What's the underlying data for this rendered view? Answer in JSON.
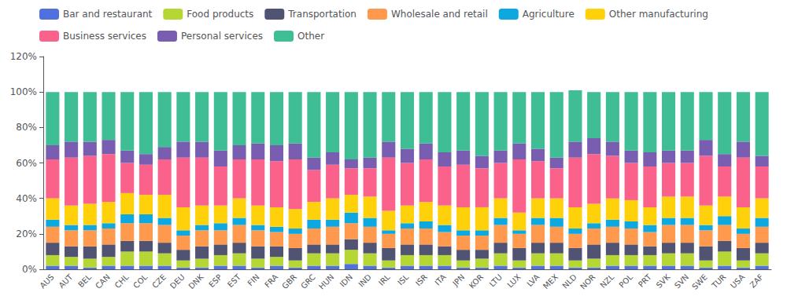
{
  "chart_data": {
    "type": "bar",
    "stacked": true,
    "categories": [
      "AUS",
      "AUT",
      "BEL",
      "CAN",
      "CHL",
      "COL",
      "CZE",
      "DEU",
      "DNK",
      "ESP",
      "EST",
      "FIN",
      "FRA",
      "GBR",
      "GRC",
      "HUN",
      "IDN",
      "IND",
      "IRL",
      "ISL",
      "ISR",
      "ITA",
      "JPN",
      "KOR",
      "LTU",
      "LUX",
      "LVA",
      "MEX",
      "NLD",
      "NOR",
      "NZL",
      "POL",
      "PRT",
      "SVK",
      "SVN",
      "SWE",
      "TUR",
      "USA",
      "ZAF"
    ],
    "series": [
      {
        "name": "Bar and restaurant",
        "values": [
          0.02,
          0.02,
          0.01,
          0.02,
          0.02,
          0.02,
          0.02,
          0.01,
          0.01,
          0.02,
          0.02,
          0.01,
          0.02,
          0.01,
          0.02,
          0.02,
          0.03,
          0.02,
          0.01,
          0.02,
          0.02,
          0.02,
          0.01,
          0.01,
          0.02,
          0.01,
          0.02,
          0.02,
          0.01,
          0.01,
          0.02,
          0.02,
          0.02,
          0.02,
          0.02,
          0.01,
          0.02,
          0.01,
          0.02
        ]
      },
      {
        "name": "Food products",
        "values": [
          0.06,
          0.05,
          0.05,
          0.05,
          0.08,
          0.08,
          0.07,
          0.04,
          0.05,
          0.06,
          0.07,
          0.05,
          0.05,
          0.04,
          0.07,
          0.07,
          0.08,
          0.07,
          0.04,
          0.06,
          0.06,
          0.06,
          0.04,
          0.05,
          0.07,
          0.04,
          0.07,
          0.07,
          0.04,
          0.05,
          0.06,
          0.06,
          0.06,
          0.07,
          0.07,
          0.04,
          0.08,
          0.04,
          0.07
        ]
      },
      {
        "name": "Transportation",
        "values": [
          0.07,
          0.06,
          0.07,
          0.07,
          0.06,
          0.06,
          0.06,
          0.06,
          0.07,
          0.06,
          0.06,
          0.07,
          0.06,
          0.07,
          0.05,
          0.05,
          0.06,
          0.06,
          0.07,
          0.06,
          0.06,
          0.05,
          0.06,
          0.05,
          0.06,
          0.07,
          0.06,
          0.06,
          0.07,
          0.08,
          0.07,
          0.06,
          0.05,
          0.06,
          0.06,
          0.08,
          0.06,
          0.07,
          0.06
        ]
      },
      {
        "name": "Wholesale and retail",
        "values": [
          0.09,
          0.09,
          0.09,
          0.09,
          0.1,
          0.1,
          0.1,
          0.08,
          0.09,
          0.08,
          0.1,
          0.09,
          0.08,
          0.08,
          0.09,
          0.1,
          0.09,
          0.09,
          0.08,
          0.09,
          0.09,
          0.08,
          0.08,
          0.08,
          0.1,
          0.08,
          0.1,
          0.09,
          0.08,
          0.09,
          0.09,
          0.09,
          0.08,
          0.1,
          0.1,
          0.09,
          0.09,
          0.08,
          0.09
        ]
      },
      {
        "name": "Agriculture",
        "values": [
          0.04,
          0.03,
          0.03,
          0.03,
          0.05,
          0.05,
          0.04,
          0.03,
          0.03,
          0.04,
          0.04,
          0.03,
          0.03,
          0.03,
          0.05,
          0.04,
          0.06,
          0.05,
          0.02,
          0.03,
          0.04,
          0.04,
          0.03,
          0.03,
          0.04,
          0.02,
          0.04,
          0.05,
          0.03,
          0.03,
          0.04,
          0.04,
          0.04,
          0.04,
          0.04,
          0.03,
          0.05,
          0.03,
          0.05
        ]
      },
      {
        "name": "Other manufacturing",
        "values": [
          0.12,
          0.11,
          0.12,
          0.12,
          0.12,
          0.11,
          0.13,
          0.13,
          0.11,
          0.1,
          0.11,
          0.11,
          0.11,
          0.11,
          0.1,
          0.12,
          0.1,
          0.12,
          0.11,
          0.1,
          0.11,
          0.11,
          0.13,
          0.13,
          0.11,
          0.1,
          0.11,
          0.11,
          0.12,
          0.11,
          0.12,
          0.12,
          0.1,
          0.12,
          0.12,
          0.11,
          0.11,
          0.12,
          0.11
        ]
      },
      {
        "name": "Business services",
        "values": [
          0.22,
          0.27,
          0.27,
          0.27,
          0.17,
          0.17,
          0.2,
          0.28,
          0.27,
          0.22,
          0.22,
          0.26,
          0.26,
          0.28,
          0.18,
          0.19,
          0.15,
          0.16,
          0.3,
          0.24,
          0.24,
          0.22,
          0.24,
          0.22,
          0.2,
          0.3,
          0.21,
          0.17,
          0.28,
          0.28,
          0.24,
          0.21,
          0.23,
          0.19,
          0.19,
          0.28,
          0.17,
          0.28,
          0.18
        ]
      },
      {
        "name": "Personal services",
        "values": [
          0.08,
          0.09,
          0.08,
          0.08,
          0.07,
          0.06,
          0.07,
          0.09,
          0.09,
          0.09,
          0.08,
          0.09,
          0.09,
          0.09,
          0.07,
          0.07,
          0.05,
          0.06,
          0.09,
          0.08,
          0.09,
          0.08,
          0.08,
          0.07,
          0.07,
          0.09,
          0.07,
          0.06,
          0.09,
          0.09,
          0.08,
          0.07,
          0.08,
          0.07,
          0.07,
          0.09,
          0.07,
          0.09,
          0.06
        ]
      },
      {
        "name": "Other",
        "values": [
          0.3,
          0.28,
          0.28,
          0.27,
          0.33,
          0.35,
          0.31,
          0.28,
          0.28,
          0.33,
          0.3,
          0.29,
          0.3,
          0.29,
          0.37,
          0.34,
          0.38,
          0.37,
          0.28,
          0.32,
          0.29,
          0.34,
          0.33,
          0.36,
          0.33,
          0.29,
          0.32,
          0.37,
          0.29,
          0.26,
          0.28,
          0.33,
          0.34,
          0.33,
          0.33,
          0.27,
          0.35,
          0.28,
          0.36
        ]
      }
    ],
    "ylim": [
      0,
      1.2
    ],
    "yticks": [
      {
        "value": 0,
        "label": "0%"
      },
      {
        "value": 0.2,
        "label": "20%"
      },
      {
        "value": 0.4,
        "label": "40%"
      },
      {
        "value": 0.6,
        "label": "60%"
      },
      {
        "value": 0.8,
        "label": "80%"
      },
      {
        "value": 1.0,
        "label": "100%"
      },
      {
        "value": 1.2,
        "label": "120%"
      }
    ],
    "grid": false,
    "legend": "upper left"
  }
}
